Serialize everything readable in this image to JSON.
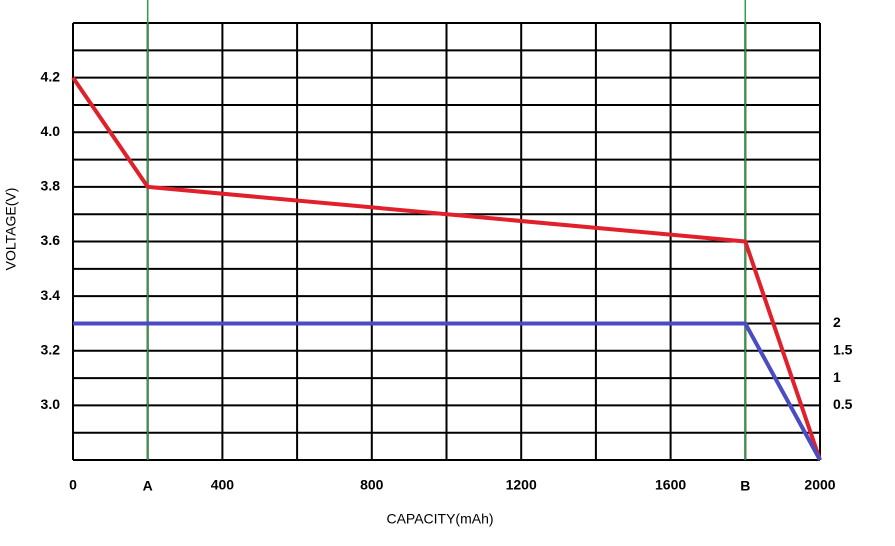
{
  "chart_data": {
    "type": "line",
    "x_label": "CAPACITY(mAh)",
    "y_label": "VOLTAGE(V)",
    "xlim": [
      0,
      2000
    ],
    "ylim": [
      2.8,
      4.4
    ],
    "y2lim": [
      -0.5,
      7.5
    ],
    "xticks": [
      0,
      400,
      800,
      1200,
      1600,
      2000
    ],
    "xmarkers": [
      {
        "value": 200,
        "label": "A"
      },
      {
        "value": 1800,
        "label": "B"
      }
    ],
    "marker_color": "#2e9e44",
    "yticks": [
      {
        "value": 3,
        "label": "3.0"
      },
      3.2,
      3.4,
      3.6,
      3.8,
      {
        "value": 4,
        "label": "4.0"
      },
      4.2
    ],
    "y2ticks": [
      0.5,
      1,
      1.5,
      2
    ],
    "y2_color": "#4b4bc4",
    "grid": true,
    "xgrid": [
      0,
      200,
      400,
      600,
      800,
      1000,
      1200,
      1400,
      1600,
      1800,
      2000
    ],
    "ygrid": [
      2.8,
      2.9,
      3.0,
      3.1,
      3.2,
      3.3,
      3.4,
      3.5,
      3.6,
      3.7,
      3.8,
      3.9,
      4.0,
      4.1,
      4.2,
      4.3,
      4.4
    ],
    "x": [
      0,
      200,
      1800,
      2000
    ],
    "series": [
      {
        "color": "#e0202a",
        "values": [
          4.2,
          3.8,
          3.6,
          2.8
        ]
      },
      {
        "color": "#4b4bc4",
        "axis": "y2",
        "x": [
          0,
          1800,
          2000
        ],
        "values": [
          2,
          2,
          -0.5
        ]
      }
    ]
  }
}
